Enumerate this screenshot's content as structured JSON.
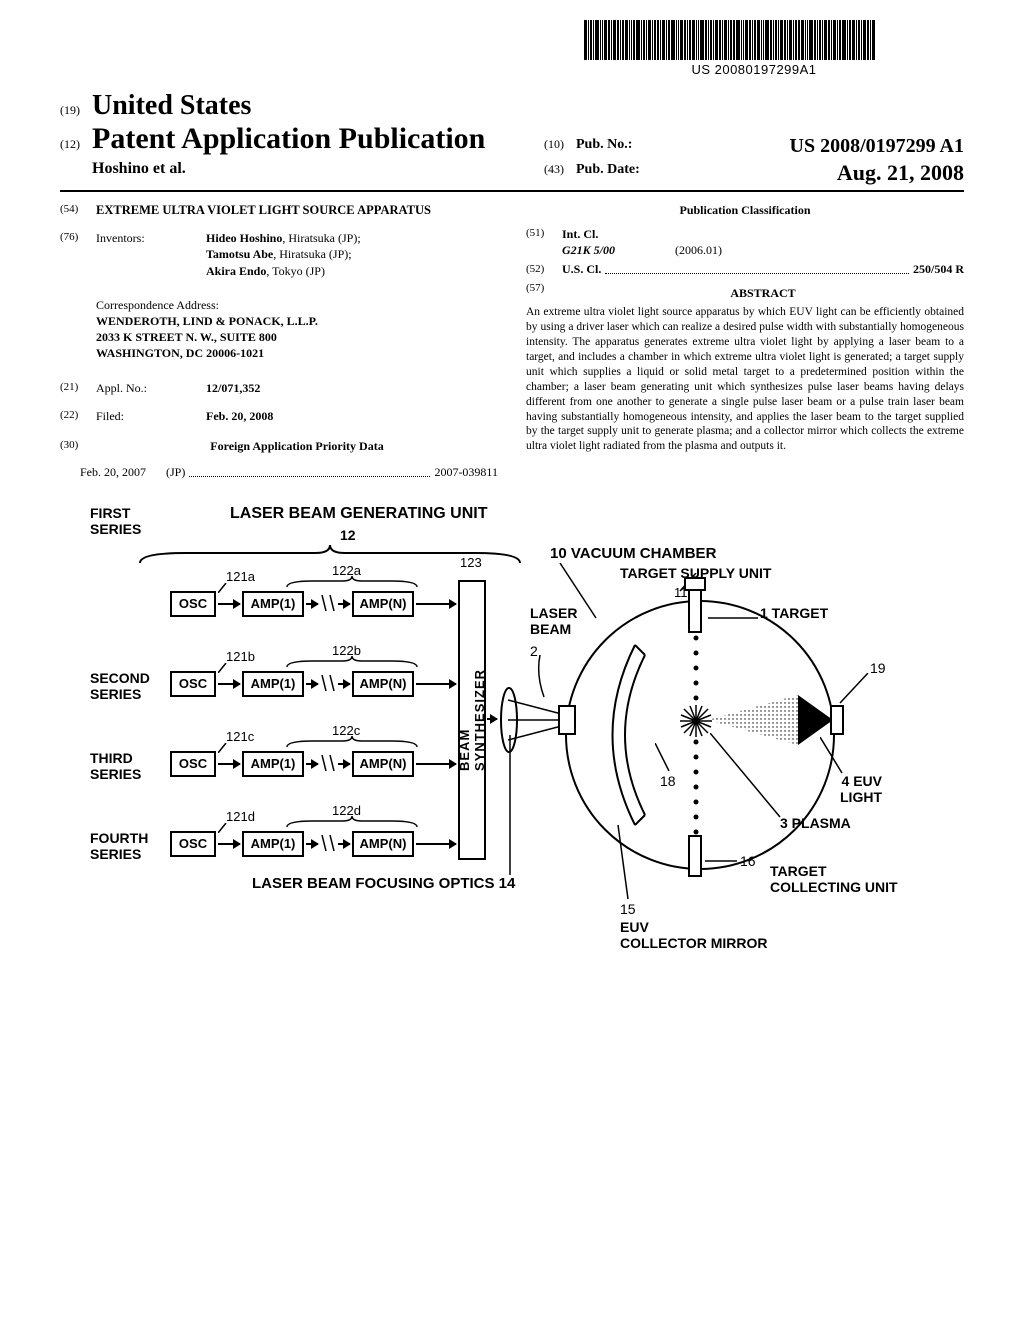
{
  "barcode_number": "US 20080197299A1",
  "header": {
    "country": "United States",
    "doc_type": "Patent Application Publication",
    "authors": "Hoshino et al.",
    "pub_no_label": "Pub. No.:",
    "pub_no": "US 2008/0197299 A1",
    "pub_date_label": "Pub. Date:",
    "pub_date": "Aug. 21, 2008"
  },
  "left": {
    "title": "EXTREME ULTRA VIOLET LIGHT SOURCE APPARATUS",
    "inventors_label": "Inventors:",
    "inventors": "Hideo Hoshino, Hiratsuka (JP);\nTamotsu Abe, Hiratsuka (JP);\nAkira Endo, Tokyo (JP)",
    "corr_label": "Correspondence Address:",
    "corr_lines": [
      "WENDEROTH, LIND & PONACK, L.L.P.",
      "2033 K STREET N. W., SUITE 800",
      "WASHINGTON, DC 20006-1021"
    ],
    "appl_label": "Appl. No.:",
    "appl_no": "12/071,352",
    "filed_label": "Filed:",
    "filed": "Feb. 20, 2008",
    "priority_label": "Foreign Application Priority Data",
    "priority_date": "Feb. 20, 2007",
    "priority_country": "(JP)",
    "priority_no": "2007-039811"
  },
  "right": {
    "pubclass": "Publication Classification",
    "intcl_label": "Int. Cl.",
    "intcl_code": "G21K 5/00",
    "intcl_date": "(2006.01)",
    "uscl_label": "U.S. Cl.",
    "uscl_code": "250/504 R",
    "abstract_label": "ABSTRACT",
    "abstract": "An extreme ultra violet light source apparatus by which EUV light can be efficiently obtained by using a driver laser which can realize a desired pulse width with substantially homogeneous intensity. The apparatus generates extreme ultra violet light by applying a laser beam to a target, and includes a chamber in which extreme ultra violet light is generated; a target supply unit which supplies a liquid or solid metal target to a predetermined position within the chamber; a laser beam generating unit which synthesizes pulse laser beams having delays different from one another to generate a single pulse laser beam or a pulse train laser beam having substantially homogeneous intensity, and applies the laser beam to the target supplied by the target supply unit to generate plasma; and a collector mirror which collects the extreme ultra violet light radiated from the plasma and outputs it."
  },
  "figure": {
    "title": "LASER BEAM GENERATING UNIT",
    "num12": "12",
    "series": [
      "FIRST\nSERIES",
      "SECOND\nSERIES",
      "THIRD\nSERIES",
      "FOURTH\nSERIES"
    ],
    "osc": "OSC",
    "amp1": "AMP(1)",
    "ampn": "AMP(N)",
    "refs_121": [
      "121a",
      "121b",
      "121c",
      "121d"
    ],
    "refs_122": [
      "122a",
      "122b",
      "122c",
      "122d"
    ],
    "ref_123": "123",
    "beam_synth": "BEAM SYNTHESIZER",
    "laser_beam": "LASER\nBEAM",
    "num2": "2",
    "chamber_label": "10 VACUUM CHAMBER",
    "target_supply": "TARGET SUPPLY UNIT",
    "num11": "11",
    "target1": "1 TARGET",
    "num19": "19",
    "num18": "18",
    "euv4": "4 EUV\nLIGHT",
    "plasma3": "3 PLASMA",
    "num16": "16",
    "target_collect": "TARGET\nCOLLECTING UNIT",
    "num15": "15",
    "euv_mirror": "EUV\nCOLLECTOR MIRROR",
    "focus_optics": "LASER BEAM FOCUSING OPTICS 14"
  },
  "colors": {
    "text": "#000000",
    "bg": "#ffffff"
  }
}
